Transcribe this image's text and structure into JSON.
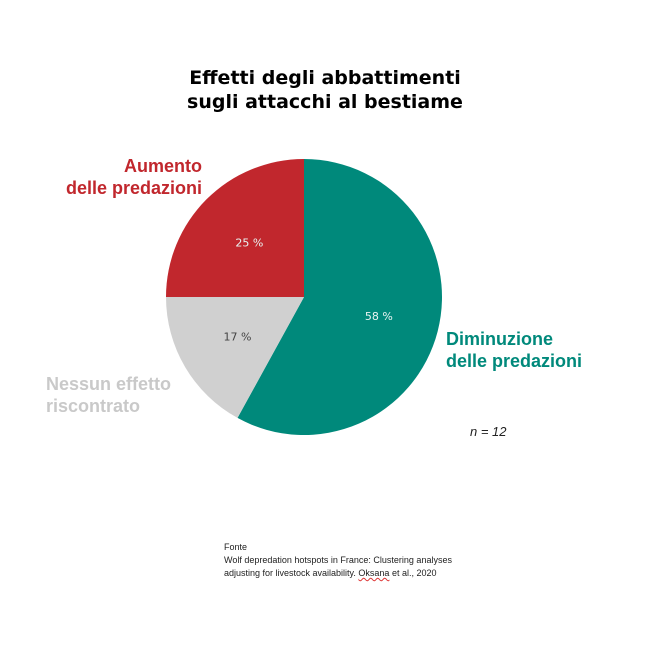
{
  "title": {
    "line1": "Effetti degli abbattimenti",
    "line2": "sugli attacchi al bestiame"
  },
  "labels": {
    "increase": [
      "Aumento",
      "delle predazioni"
    ],
    "decrease": [
      "Diminuzione",
      "delle predazioni"
    ],
    "none": [
      "Nessun effetto",
      "riscontrato"
    ]
  },
  "colors": {
    "increase": "#c1272d",
    "decrease": "#00897b",
    "none": "#d0d0d0",
    "slice_text_light": "#e8f4f2",
    "slice_text_dark": "#444444"
  },
  "chart_data": {
    "type": "pie",
    "title": "Effetti degli abbattimenti sugli attacchi al bestiame",
    "slices": [
      {
        "key": "decrease",
        "name": "Diminuzione delle predazioni",
        "value": 58,
        "label": "58 %"
      },
      {
        "key": "none",
        "name": "Nessun effetto riscontrato",
        "value": 17,
        "label": "17 %"
      },
      {
        "key": "increase",
        "name": "Aumento delle predazioni",
        "value": 25,
        "label": "25 %"
      }
    ],
    "start_angle_deg": 0,
    "direction": "clockwise"
  },
  "note": "n = 12",
  "source": {
    "heading": "Fonte",
    "line1": "Wolf depredation hotspots in France: Clustering analyses",
    "line2_pre": "adjusting for livestock availability. ",
    "line2_author": "Oksana",
    "line2_post": " et al., 2020"
  }
}
